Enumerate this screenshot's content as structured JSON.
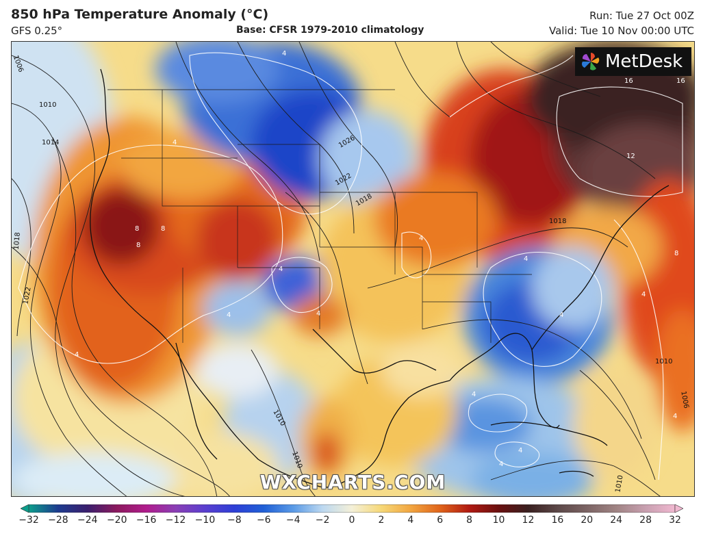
{
  "header": {
    "title": "850 hPa Temperature Anomaly (°C)",
    "model": "GFS 0.25°",
    "base": "Base: CFSR 1979-2010 climatology",
    "run": "Run: Tue 27 Oct 00Z",
    "valid": "Valid: Tue 10 Nov 00:00 UTC"
  },
  "logo": {
    "text": "MetDesk",
    "icon": "metdesk-pinwheel-icon"
  },
  "watermark": "WXCHARTS.COM",
  "map": {
    "region": "North America",
    "contour_labels": [
      "1010",
      "1014",
      "1018",
      "1022",
      "1026",
      "1022",
      "1018",
      "1018",
      "1010",
      "1010",
      "1010",
      "1006",
      "1006",
      "1010"
    ],
    "anomaly_labels": [
      "4",
      "4",
      "4",
      "8",
      "8",
      "8",
      "4",
      "4",
      "4",
      "4",
      "4",
      "4",
      "4",
      "4",
      "4",
      "16",
      "12",
      "16",
      "8",
      "4",
      "4"
    ]
  },
  "colorbar": {
    "ticks": [
      "−32",
      "−28",
      "−24",
      "−20",
      "−16",
      "−12",
      "−10",
      "−8",
      "−6",
      "−4",
      "−2",
      "0",
      "2",
      "4",
      "6",
      "8",
      "10",
      "12",
      "16",
      "20",
      "24",
      "28",
      "32"
    ],
    "colors": [
      "#0d9e8c",
      "#1d3b8f",
      "#3b1f6e",
      "#8c1a5e",
      "#b01c8c",
      "#8a3fb5",
      "#5a3fcf",
      "#2e3fd6",
      "#2060d6",
      "#5a9ae6",
      "#bcd8f0",
      "#f4f0d8",
      "#f6d878",
      "#f2a640",
      "#e0641a",
      "#b01a12",
      "#6a1010",
      "#3a2020",
      "#5c4848",
      "#7c6464",
      "#a08484",
      "#c8a0b0",
      "#f0b8d0"
    ]
  }
}
